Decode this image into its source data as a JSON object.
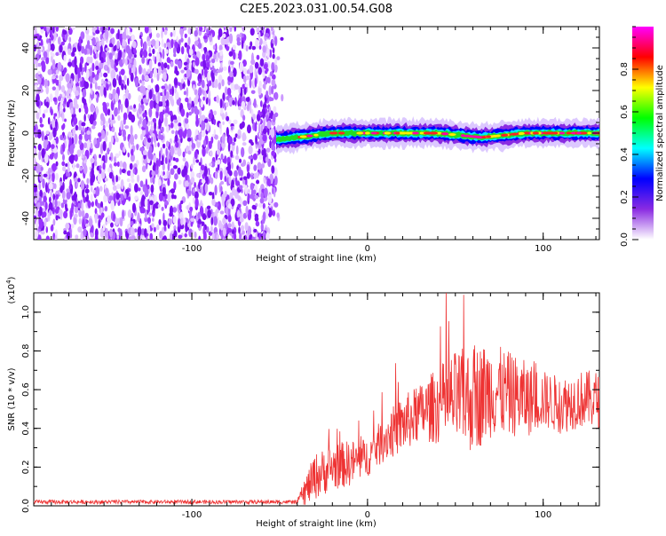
{
  "title": "C2E5.2023.031.00.54.G08",
  "chart_data": [
    {
      "type": "heatmap",
      "xlabel": "Height of straight line (km)",
      "ylabel": "Frequency (Hz)",
      "xlim": [
        -190,
        132
      ],
      "ylim": [
        -50,
        50
      ],
      "xticks": [
        -100,
        0,
        100
      ],
      "yticks": [
        -40,
        -20,
        0,
        20,
        40
      ],
      "colorbar": {
        "label": "Normalized spectral amplitude",
        "range": [
          0,
          1
        ],
        "ticks": [
          0.0,
          0.2,
          0.4,
          0.6,
          0.8
        ],
        "colors": [
          "#ffffff",
          "#8a2be2",
          "#0000ff",
          "#00ffff",
          "#00ff00",
          "#ffff00",
          "#ff0000",
          "#ff00ff"
        ]
      },
      "noise_region": {
        "x": [
          -190,
          -52
        ],
        "y": [
          -50,
          50
        ]
      },
      "signal_band": {
        "x": [
          -52,
          132
        ],
        "center_hz": [
          [
            -52,
            -3
          ],
          [
            -40,
            -2
          ],
          [
            -20,
            0
          ],
          [
            0,
            0
          ],
          [
            40,
            0
          ],
          [
            65,
            -2
          ],
          [
            90,
            0
          ],
          [
            132,
            0
          ]
        ],
        "width_hz": 4
      }
    },
    {
      "type": "line",
      "xlabel": "Height of straight line (km)",
      "ylabel": "SNR (10 * v/v)",
      "yscale_label": "(x10^4)",
      "xlim": [
        -190,
        132
      ],
      "ylim": [
        0,
        1.1
      ],
      "xticks": [
        -100,
        0,
        100
      ],
      "yticks": [
        0.0,
        0.2,
        0.4,
        0.6,
        0.8,
        1.0
      ],
      "series": [
        {
          "color": "#ee3333",
          "envelope": {
            "x": [
              -190,
              -40,
              -35,
              -30,
              -20,
              -10,
              0,
              10,
              20,
              30,
              40,
              50,
              60,
              70,
              80,
              90,
              100,
              110,
              120,
              132
            ],
            "mean": [
              0.02,
              0.02,
              0.08,
              0.15,
              0.2,
              0.22,
              0.25,
              0.35,
              0.42,
              0.48,
              0.52,
              0.55,
              0.55,
              0.6,
              0.58,
              0.55,
              0.55,
              0.52,
              0.55,
              0.55
            ],
            "spread": [
              0.01,
              0.01,
              0.08,
              0.12,
              0.12,
              0.12,
              0.1,
              0.12,
              0.15,
              0.15,
              0.2,
              0.25,
              0.28,
              0.25,
              0.22,
              0.2,
              0.15,
              0.15,
              0.15,
              0.15
            ]
          }
        }
      ]
    }
  ]
}
